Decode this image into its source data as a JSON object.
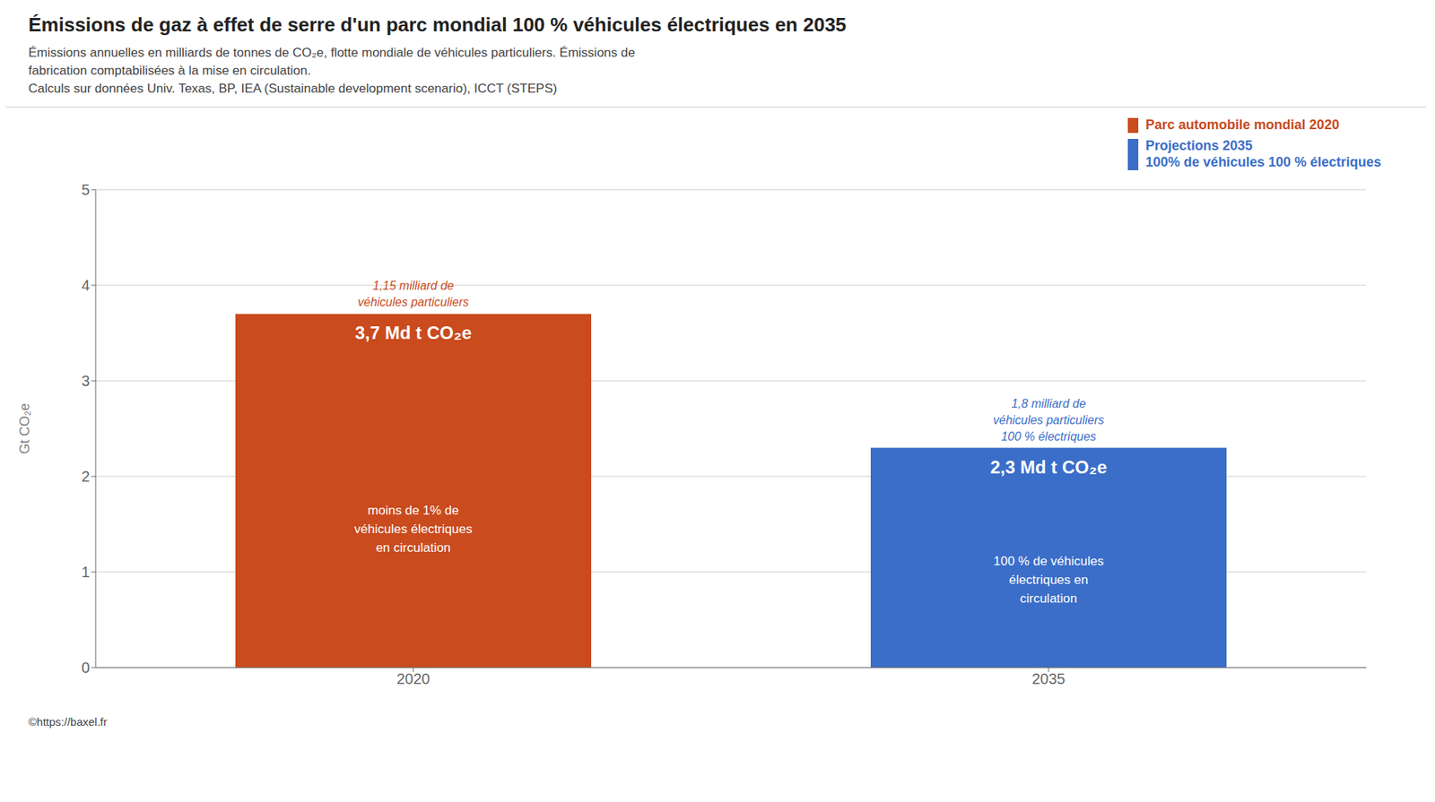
{
  "chart_data": {
    "type": "bar",
    "title": "Émissions de gaz à effet de serre d'un parc mondial 100 % véhicules électriques en 2035",
    "subtitle": [
      "Émissions annuelles en milliards de tonnes de CO₂e, flotte mondiale de véhicules particuliers. Émissions de",
      "fabrication comptabilisées à la mise en circulation.",
      "Calculs sur données Univ. Texas, BP, IEA (Sustainable development scenario), ICCT (STEPS)"
    ],
    "categories": [
      "2020",
      "2035"
    ],
    "values": [
      3.7,
      2.3
    ],
    "colors": [
      "#C94B1E",
      "#3B6EC8"
    ],
    "data_labels": true,
    "value_labels": [
      "3,7 Md t CO₂e",
      "2,3 Md t CO₂e"
    ],
    "inner_labels": [
      "moins de 1% de\nvéhicules électriques\nen circulation",
      "100 % de véhicules\nélectriques en\ncirculation"
    ],
    "annotations": [
      "1,15 milliard de\nvéhicules particuliers",
      "1,8 milliard de\nvéhicules particuliers\n100 % électriques"
    ],
    "legend": "top-right",
    "legend_labels": [
      "Parc automobile mondial 2020",
      "Projections 2035\n100% de véhicules 100 % électriques"
    ],
    "ylabel": "Gt CO₂e",
    "ylim": [
      0,
      5
    ],
    "yticks": [
      0,
      1,
      2,
      3,
      4,
      5
    ],
    "grid": true,
    "source": "©https://baxel.fr"
  }
}
